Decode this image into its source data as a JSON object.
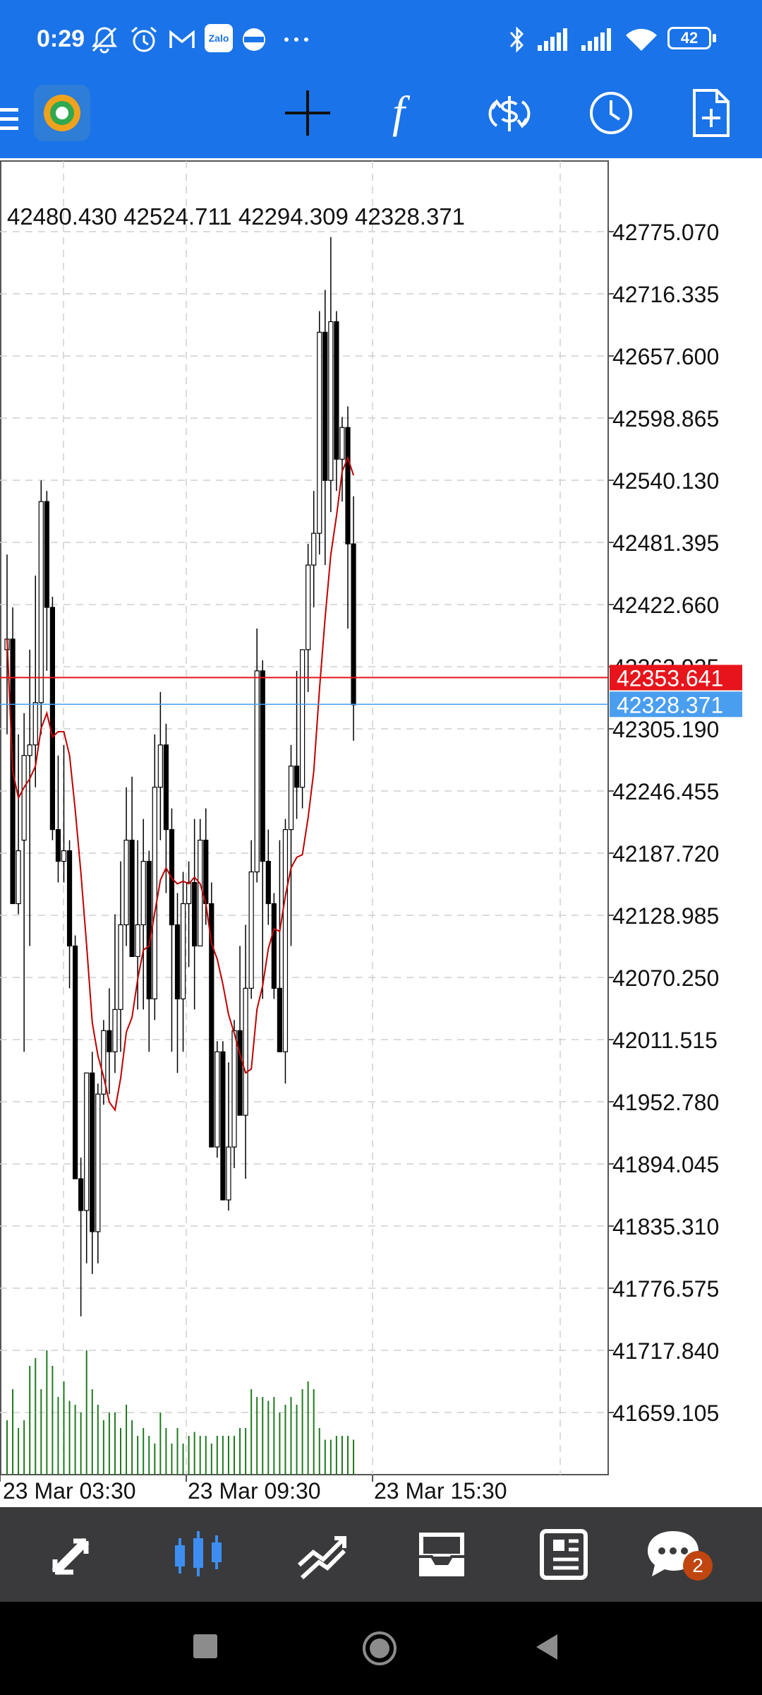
{
  "status_bar": {
    "time": "0:29",
    "icons": [
      "mute-bell-icon",
      "alarm-icon",
      "gmail-icon",
      "zalo-icon",
      "app-icon",
      "more-dots-icon",
      "bluetooth-icon",
      "signal-1-icon",
      "signal-2-icon",
      "wifi-icon",
      "battery-icon"
    ],
    "zalo_label": "Zalo",
    "battery": "42"
  },
  "toolbar": {
    "icons": [
      "menu-icon",
      "metatrader-logo",
      "crosshair-icon",
      "indicators-icon",
      "trade-dollar-icon",
      "timeframe-clock-icon",
      "new-order-icon"
    ],
    "indicator_glyph": "f"
  },
  "chart": {
    "ohlc_text": "42480.430 42524.711 42294.309 42328.371",
    "price_labels": [
      "42775.070",
      "42716.335",
      "42657.600",
      "42598.865",
      "42540.130",
      "42481.395",
      "42422.660",
      "42363.925",
      "42305.190",
      "42246.455",
      "42187.720",
      "42128.985",
      "42070.250",
      "42011.515",
      "41952.780",
      "41894.045",
      "41835.310",
      "41776.575",
      "41717.840",
      "41659.105"
    ],
    "price_top": 42775.07,
    "price_step": 58.735,
    "ask_price": "42353.641",
    "bid_price": "42328.371",
    "ask_color": "#e8141b",
    "bid_color": "#4a9eef",
    "time_labels": [
      "23 Mar 03:30",
      "23 Mar 09:30",
      "23 Mar 15:30"
    ],
    "candle_color_up": "#ffffff",
    "candle_color_down": "#000000",
    "ma_color": "#c00000",
    "volume_color": "#1f7a1f"
  },
  "bottom_nav": {
    "items": [
      "quotes-icon",
      "chart-icon",
      "trade-icon",
      "history-icon",
      "news-icon",
      "messages-icon"
    ],
    "active": "chart-icon",
    "active_color": "#3d8ef0",
    "messages_badge": "2"
  },
  "system_nav": {
    "items": [
      "recents-button",
      "home-button",
      "back-button"
    ]
  }
}
